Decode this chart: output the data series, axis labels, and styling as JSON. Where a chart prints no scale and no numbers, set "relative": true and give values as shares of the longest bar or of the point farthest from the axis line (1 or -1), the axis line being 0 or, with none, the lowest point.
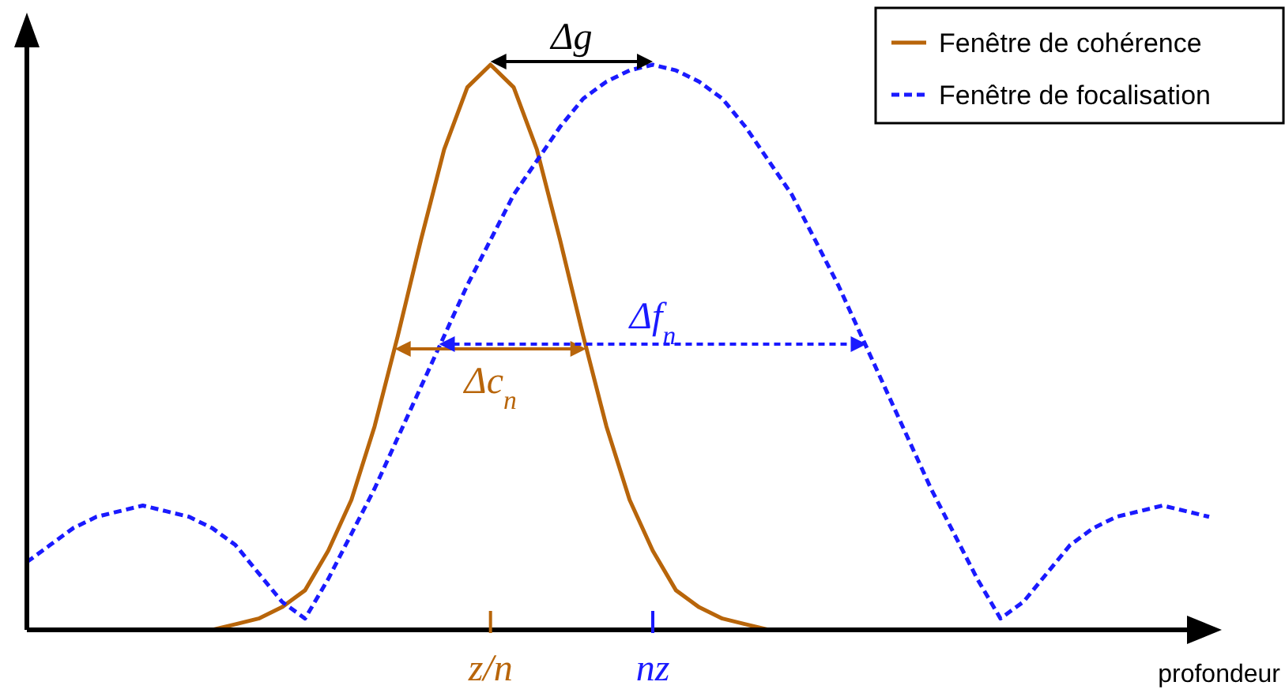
{
  "chart_data": {
    "type": "line",
    "relative": true,
    "xlabel": "profondeur",
    "categories": [
      null,
      null,
      null,
      null,
      null,
      null,
      null,
      null,
      null,
      null,
      null,
      null,
      null,
      null,
      null,
      null,
      null,
      null,
      null,
      null,
      "z/n",
      null,
      null,
      null,
      null,
      null,
      null,
      "nz",
      null,
      null,
      null,
      null,
      null,
      null,
      null,
      null,
      null,
      null,
      null,
      null,
      null,
      null,
      null,
      null,
      null,
      null,
      null,
      null,
      null,
      null,
      null,
      null
    ],
    "legend": "top right",
    "series": [
      {
        "name": "Fenêtre de cohérence",
        "color": "#b8650a",
        "line_style": "solid",
        "values": [
          null,
          null,
          null,
          null,
          null,
          null,
          null,
          null,
          0,
          0.01,
          0.02,
          0.04,
          0.07,
          0.14,
          0.23,
          0.36,
          0.52,
          0.69,
          0.85,
          0.96,
          1,
          0.96,
          0.85,
          0.69,
          0.52,
          0.36,
          0.23,
          0.14,
          0.07,
          0.04,
          0.02,
          0.01,
          0,
          null,
          null,
          null,
          null,
          null,
          null,
          null,
          null,
          null,
          null,
          null,
          null,
          null,
          null,
          null,
          null,
          null,
          null,
          null
        ]
      },
      {
        "name": "Fenêtre de focalisation",
        "color": "#1a1aff",
        "line_style": "dashed",
        "values": [
          0.12,
          0.15,
          0.18,
          0.2,
          0.21,
          0.22,
          0.21,
          0.2,
          0.18,
          0.15,
          0.1,
          0.05,
          0.02,
          0.09,
          0.17,
          0.25,
          0.34,
          0.43,
          0.52,
          0.61,
          0.69,
          0.77,
          0.83,
          0.89,
          0.94,
          0.97,
          0.99,
          1,
          0.99,
          0.97,
          0.94,
          0.89,
          0.83,
          0.77,
          0.69,
          0.61,
          0.52,
          0.43,
          0.34,
          0.25,
          0.17,
          0.09,
          0.02,
          0.05,
          0.1,
          0.15,
          0.18,
          0.2,
          0.21,
          0.22,
          0.21,
          0.2
        ]
      }
    ],
    "annotations": [
      "Δg",
      "Δc$_{n}$",
      "Δf$_{n}$"
    ]
  }
}
